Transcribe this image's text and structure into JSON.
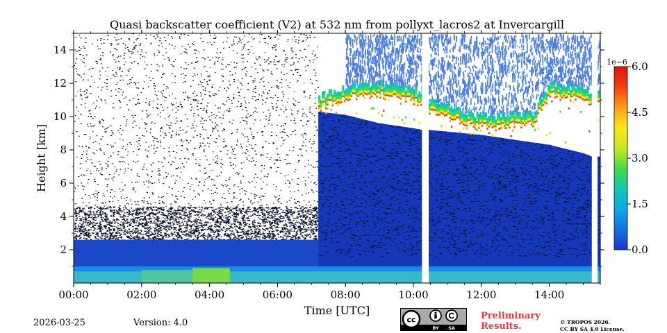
{
  "chart_data": {
    "type": "heatmap",
    "title": "Quasi backscatter coefficient (V2) at 532 nm from pollyxt_lacros2 at Invercargill",
    "xlabel": "Time [UTC]",
    "ylabel": "Height [km]",
    "x_unit": "hours UTC",
    "xlim": [
      0,
      15.5
    ],
    "ylim": [
      0,
      15
    ],
    "x_ticks": [
      0,
      2,
      4,
      6,
      8,
      10,
      12,
      14
    ],
    "x_tick_labels": [
      "00:00",
      "02:00",
      "04:00",
      "06:00",
      "08:00",
      "10:00",
      "12:00",
      "14:00"
    ],
    "y_ticks": [
      2,
      4,
      6,
      8,
      10,
      12,
      14
    ],
    "y_tick_labels": [
      "2",
      "4",
      "6",
      "8",
      "10",
      "12",
      "14"
    ],
    "colorbar": {
      "multiplier": "1e−6",
      "range": [
        0.0,
        6.0
      ],
      "ticks": [
        0.0,
        1.5,
        3.0,
        4.5,
        6.0
      ],
      "tick_labels": [
        "0.0",
        "1.5",
        "3.0",
        "4.5",
        "6.0"
      ],
      "colormap": [
        "#1838c8",
        "#1870e0",
        "#10a8e8",
        "#10c8b0",
        "#48d848",
        "#c8e820",
        "#f8e818",
        "#f8a018",
        "#f04010",
        "#e01010"
      ]
    },
    "data_gaps_hours": [
      [
        10.25,
        10.45
      ],
      [
        15.25,
        15.42
      ]
    ],
    "cloud_top_km": [
      [
        7.2,
        10.3
      ],
      [
        8.0,
        10.1
      ],
      [
        9.0,
        9.6
      ],
      [
        10.0,
        9.3
      ],
      [
        10.25,
        9.2
      ],
      [
        10.45,
        9.2
      ],
      [
        11.0,
        9.1
      ],
      [
        12.0,
        8.9
      ],
      [
        13.0,
        8.6
      ],
      [
        14.0,
        8.3
      ],
      [
        15.0,
        7.8
      ],
      [
        15.25,
        7.6
      ]
    ],
    "cloud_layer_km": [
      [
        7.2,
        10.3,
        11.2
      ],
      [
        8.0,
        10.1,
        11.8
      ],
      [
        9.0,
        9.6,
        12.0
      ],
      [
        10.0,
        9.3,
        11.6
      ],
      [
        10.45,
        9.2,
        11.0
      ],
      [
        12.0,
        8.9,
        10.0
      ],
      [
        13.5,
        8.6,
        10.2
      ],
      [
        14.0,
        8.8,
        12.0
      ],
      [
        15.0,
        8.0,
        11.6
      ]
    ],
    "aerosol_layer_top_km": 1.0,
    "aerosol_bright_interval_hours": [
      3.5,
      4.6
    ]
  },
  "footer": {
    "date": "2026-03-25",
    "version": "Version: 4.0",
    "preliminary_line1": "Preliminary",
    "preliminary_line2": "Results.",
    "preliminary_color": "#e83a3a",
    "copyright_line1": "© TROPOS 2026.",
    "copyright_line2": "CC BY SA 4.0 License.",
    "license_icon_text": "cc",
    "license_by": "BY",
    "license_sa": "SA"
  }
}
